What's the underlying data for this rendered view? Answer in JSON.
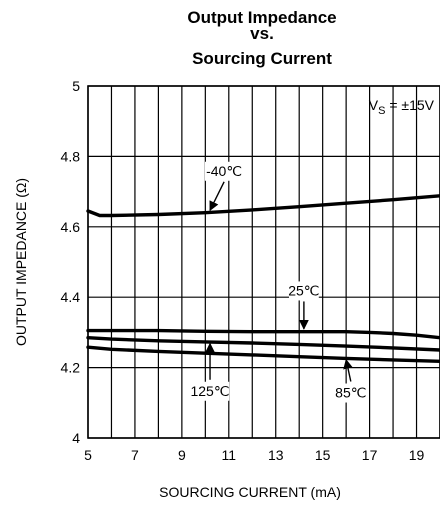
{
  "chart_data": {
    "type": "line",
    "title": [
      "Output Impedance",
      "vs.",
      "Sourcing Current"
    ],
    "xlabel": "SOURCING CURRENT (mA)",
    "ylabel": "OUTPUT IMPEDANCE (Ω)",
    "xlim": [
      5,
      20
    ],
    "ylim": [
      4,
      5
    ],
    "xticks": [
      5,
      7,
      9,
      11,
      13,
      15,
      17,
      19
    ],
    "yticks": [
      4,
      4.2,
      4.4,
      4.6,
      4.8,
      5
    ],
    "ytick_labels": [
      "4",
      "4.2",
      "4.4",
      "4.6",
      "4.8",
      "5"
    ],
    "grid": true,
    "condition": {
      "main": "V",
      "sub": "S",
      "rest": " = ±15V"
    },
    "series": [
      {
        "name": "-40℃",
        "x": [
          5,
          5.5,
          6,
          8,
          10,
          12,
          14,
          16,
          18,
          20
        ],
        "y": [
          4.645,
          4.632,
          4.632,
          4.635,
          4.64,
          4.648,
          4.657,
          4.667,
          4.677,
          4.688
        ]
      },
      {
        "name": "25℃",
        "x": [
          5,
          6,
          8,
          10,
          12,
          14,
          16,
          17,
          18,
          19,
          20
        ],
        "y": [
          4.305,
          4.305,
          4.305,
          4.303,
          4.302,
          4.302,
          4.302,
          4.3,
          4.297,
          4.292,
          4.285
        ]
      },
      {
        "name": "125℃",
        "x": [
          5,
          6,
          8,
          10,
          12,
          14,
          16,
          18,
          20
        ],
        "y": [
          4.285,
          4.281,
          4.276,
          4.273,
          4.27,
          4.266,
          4.261,
          4.256,
          4.25
        ]
      },
      {
        "name": "85℃",
        "x": [
          5,
          6,
          8,
          10,
          12,
          14,
          16,
          18,
          20
        ],
        "y": [
          4.258,
          4.252,
          4.246,
          4.241,
          4.236,
          4.231,
          4.226,
          4.222,
          4.218
        ]
      }
    ],
    "annotations": [
      {
        "series": "-40℃",
        "text": "-40℃",
        "label_x": 10.8,
        "label_y": 4.745,
        "arrow_to_x": 10.2,
        "arrow_to_y": 4.647,
        "anchor": "middle"
      },
      {
        "series": "25℃",
        "text": "25℃",
        "label_x": 14.2,
        "label_y": 4.405,
        "arrow_to_x": 14.2,
        "arrow_to_y": 4.31,
        "anchor": "middle"
      },
      {
        "series": "125℃",
        "text": "125℃",
        "label_x": 10.2,
        "label_y": 4.12,
        "arrow_to_x": 10.2,
        "arrow_to_y": 4.268,
        "anchor": "middle"
      },
      {
        "series": "85℃",
        "text": "85℃",
        "label_x": 16.2,
        "label_y": 4.115,
        "arrow_to_x": 16.0,
        "arrow_to_y": 4.222,
        "anchor": "middle"
      }
    ]
  }
}
